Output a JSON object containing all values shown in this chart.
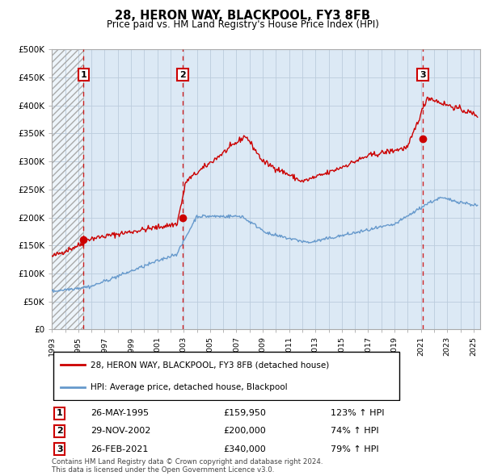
{
  "title": "28, HERON WAY, BLACKPOOL, FY3 8FB",
  "subtitle": "Price paid vs. HM Land Registry's House Price Index (HPI)",
  "ylim": [
    0,
    500000
  ],
  "yticks": [
    0,
    50000,
    100000,
    150000,
    200000,
    250000,
    300000,
    350000,
    400000,
    450000,
    500000
  ],
  "ytick_labels": [
    "£0",
    "£50K",
    "£100K",
    "£150K",
    "£200K",
    "£250K",
    "£300K",
    "£350K",
    "£400K",
    "£450K",
    "£500K"
  ],
  "sale_prices": [
    159950,
    200000,
    340000
  ],
  "sale_labels": [
    "1",
    "2",
    "3"
  ],
  "sale_color": "#cc0000",
  "hpi_color": "#6699cc",
  "bg_color": "#dce9f5",
  "hatch_color": "#bbbbcc",
  "grid_color": "#bbccdd",
  "dashed_line_color": "#cc0000",
  "legend_items": [
    "28, HERON WAY, BLACKPOOL, FY3 8FB (detached house)",
    "HPI: Average price, detached house, Blackpool"
  ],
  "table_data": [
    [
      "1",
      "26-MAY-1995",
      "£159,950",
      "123% ↑ HPI"
    ],
    [
      "2",
      "29-NOV-2002",
      "£200,000",
      "74% ↑ HPI"
    ],
    [
      "3",
      "26-FEB-2021",
      "£340,000",
      "79% ↑ HPI"
    ]
  ],
  "footnote": "Contains HM Land Registry data © Crown copyright and database right 2024.\nThis data is licensed under the Open Government Licence v3.0.",
  "xlim_start": 1993.0,
  "xlim_end": 2025.5,
  "sale_year_decimals": [
    1995.4,
    2002.92,
    2021.15
  ]
}
